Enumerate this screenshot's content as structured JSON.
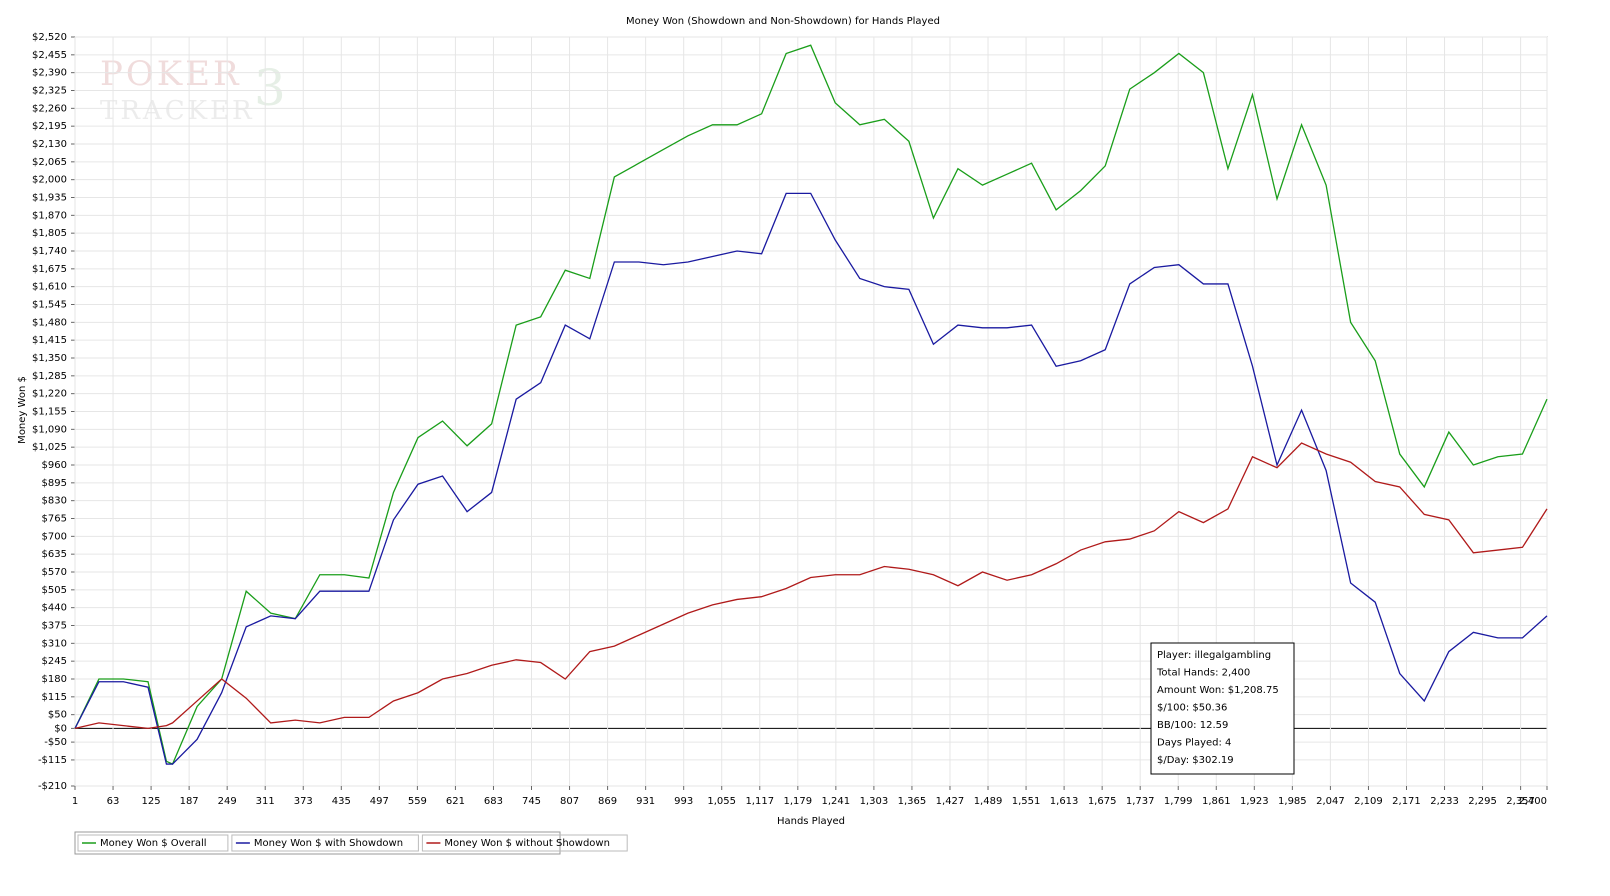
{
  "chart_data": {
    "type": "line",
    "title": "Money Won (Showdown and Non-Showdown) for Hands Played",
    "x_label": "Hands Played",
    "y_label": "Money Won $",
    "watermark": [
      "POKER",
      "TRACKER",
      "3"
    ],
    "x": [
      1,
      40,
      80,
      120,
      150,
      160,
      200,
      240,
      280,
      320,
      360,
      400,
      440,
      480,
      520,
      560,
      600,
      640,
      680,
      720,
      760,
      800,
      840,
      880,
      920,
      960,
      1000,
      1040,
      1080,
      1120,
      1160,
      1200,
      1240,
      1280,
      1320,
      1360,
      1400,
      1440,
      1480,
      1520,
      1560,
      1600,
      1640,
      1680,
      1720,
      1760,
      1800,
      1840,
      1880,
      1920,
      1960,
      2000,
      2040,
      2080,
      2120,
      2160,
      2200,
      2240,
      2280,
      2320,
      2360,
      2400
    ],
    "series": [
      {
        "name": "Money Won $ Overall",
        "color": "#1a9e1a",
        "values": [
          0,
          180,
          180,
          170,
          -120,
          -130,
          80,
          180,
          500,
          420,
          400,
          560,
          560,
          548,
          860,
          1060,
          1120,
          1030,
          1110,
          1470,
          1500,
          1670,
          1640,
          2010,
          2060,
          2110,
          2160,
          2200,
          2200,
          2240,
          2460,
          2490,
          2280,
          2200,
          2220,
          2140,
          1860,
          2040,
          1980,
          2020,
          2060,
          1890,
          1960,
          2050,
          2330,
          2390,
          2460,
          2390,
          2040,
          2310,
          1930,
          2200,
          1980,
          1480,
          1340,
          1000,
          880,
          1080,
          960,
          990,
          1000,
          1200
        ]
      },
      {
        "name": "Money Won $ with Showdown",
        "color": "#1a1aa0",
        "values": [
          0,
          170,
          170,
          150,
          -130,
          -130,
          -40,
          130,
          370,
          410,
          400,
          500,
          500,
          500,
          760,
          890,
          920,
          790,
          860,
          1200,
          1260,
          1470,
          1420,
          1700,
          1700,
          1690,
          1700,
          1720,
          1740,
          1730,
          1950,
          1950,
          1780,
          1640,
          1610,
          1600,
          1400,
          1470,
          1460,
          1460,
          1470,
          1320,
          1340,
          1380,
          1620,
          1680,
          1690,
          1620,
          1620,
          1320,
          960,
          1160,
          940,
          530,
          460,
          200,
          100,
          280,
          350,
          330,
          330,
          410
        ]
      },
      {
        "name": "Money Won $ without Showdown",
        "color": "#b01a1a",
        "values": [
          0,
          20,
          10,
          0,
          10,
          20,
          100,
          180,
          110,
          20,
          30,
          20,
          40,
          40,
          100,
          130,
          180,
          200,
          230,
          250,
          240,
          180,
          280,
          300,
          340,
          380,
          420,
          450,
          470,
          480,
          510,
          550,
          560,
          560,
          590,
          580,
          560,
          520,
          570,
          540,
          560,
          600,
          650,
          680,
          690,
          720,
          790,
          750,
          800,
          990,
          950,
          1040,
          1000,
          970,
          900,
          880,
          780,
          760,
          640,
          650,
          660,
          800
        ]
      }
    ],
    "xlim": [
      1,
      2400
    ],
    "ylim": [
      -210,
      2520
    ],
    "xticks": [
      1,
      63,
      125,
      187,
      249,
      311,
      373,
      435,
      497,
      559,
      621,
      683,
      745,
      807,
      869,
      931,
      993,
      {
        "value": 1055,
        "label": "1,055"
      },
      {
        "value": 1117,
        "label": "1,117"
      },
      {
        "value": 1179,
        "label": "1,179"
      },
      {
        "value": 1241,
        "label": "1,241"
      },
      {
        "value": 1303,
        "label": "1,303"
      },
      {
        "value": 1365,
        "label": "1,365"
      },
      {
        "value": 1427,
        "label": "1,427"
      },
      {
        "value": 1489,
        "label": "1,489"
      },
      {
        "value": 1551,
        "label": "1,551"
      },
      {
        "value": 1613,
        "label": "1,613"
      },
      {
        "value": 1675,
        "label": "1,675"
      },
      {
        "value": 1737,
        "label": "1,737"
      },
      {
        "value": 1799,
        "label": "1,799"
      },
      {
        "value": 1861,
        "label": "1,861"
      },
      {
        "value": 1923,
        "label": "1,923"
      },
      {
        "value": 1985,
        "label": "1,985"
      },
      {
        "value": 2047,
        "label": "2,047"
      },
      {
        "value": 2109,
        "label": "2,109"
      },
      {
        "value": 2171,
        "label": "2,171"
      },
      {
        "value": 2233,
        "label": "2,233"
      },
      {
        "value": 2295,
        "label": "2,295"
      },
      {
        "value": 2357,
        "label": "2,357"
      },
      {
        "value": 2400,
        "label": "2,400"
      }
    ],
    "yticks": [
      {
        "value": -210,
        "label": "-$210"
      },
      {
        "value": -115,
        "label": "-$115"
      },
      {
        "value": -50,
        "label": "-$50"
      },
      {
        "value": 0,
        "label": "$0"
      },
      {
        "value": 50,
        "label": "$50"
      },
      {
        "value": 115,
        "label": "$115"
      },
      {
        "value": 180,
        "label": "$180"
      },
      {
        "value": 245,
        "label": "$245"
      },
      {
        "value": 310,
        "label": "$310"
      },
      {
        "value": 375,
        "label": "$375"
      },
      {
        "value": 440,
        "label": "$440"
      },
      {
        "value": 505,
        "label": "$505"
      },
      {
        "value": 570,
        "label": "$570"
      },
      {
        "value": 635,
        "label": "$635"
      },
      {
        "value": 700,
        "label": "$700"
      },
      {
        "value": 765,
        "label": "$765"
      },
      {
        "value": 830,
        "label": "$830"
      },
      {
        "value": 895,
        "label": "$895"
      },
      {
        "value": 960,
        "label": "$960"
      },
      {
        "value": 1025,
        "label": "$1,025"
      },
      {
        "value": 1090,
        "label": "$1,090"
      },
      {
        "value": 1155,
        "label": "$1,155"
      },
      {
        "value": 1220,
        "label": "$1,220"
      },
      {
        "value": 1285,
        "label": "$1,285"
      },
      {
        "value": 1350,
        "label": "$1,350"
      },
      {
        "value": 1415,
        "label": "$1,415"
      },
      {
        "value": 1480,
        "label": "$1,480"
      },
      {
        "value": 1545,
        "label": "$1,545"
      },
      {
        "value": 1610,
        "label": "$1,610"
      },
      {
        "value": 1675,
        "label": "$1,675"
      },
      {
        "value": 1740,
        "label": "$1,740"
      },
      {
        "value": 1805,
        "label": "$1,805"
      },
      {
        "value": 1870,
        "label": "$1,870"
      },
      {
        "value": 1935,
        "label": "$1,935"
      },
      {
        "value": 2000,
        "label": "$2,000"
      },
      {
        "value": 2065,
        "label": "$2,065"
      },
      {
        "value": 2130,
        "label": "$2,130"
      },
      {
        "value": 2195,
        "label": "$2,195"
      },
      {
        "value": 2260,
        "label": "$2,260"
      },
      {
        "value": 2325,
        "label": "$2,325"
      },
      {
        "value": 2390,
        "label": "$2,390"
      },
      {
        "value": 2455,
        "label": "$2,455"
      },
      {
        "value": 2520,
        "label": "$2,520"
      }
    ],
    "grid": true,
    "legend": "bottom-left",
    "tooltip": [
      "Player: illegalgambling",
      "Total Hands: 2,400",
      "Amount Won: $1,208.75",
      "$/100: $50.36",
      "BB/100: 12.59",
      "Days Played: 4",
      "$/Day: $302.19"
    ]
  }
}
